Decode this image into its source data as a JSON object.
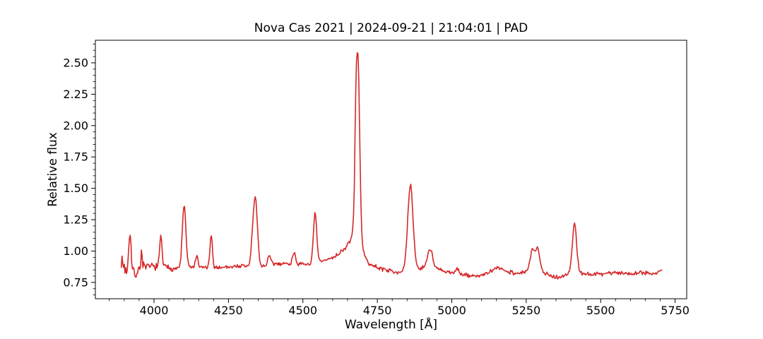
{
  "figure": {
    "background": "#ffffff"
  },
  "chart_data": {
    "type": "line",
    "title": "Nova Cas 2021 | 2024-09-21 | 21:04:01 | PAD",
    "xlabel": "Wavelength [Å]",
    "ylabel": "Relative flux",
    "xlim": [
      3803,
      5789
    ],
    "ylim": [
      0.62,
      2.68
    ],
    "x_ticks": [
      4000,
      4250,
      4500,
      4750,
      5000,
      5250,
      5500,
      5750
    ],
    "x_tick_labels": [
      "4000",
      "4250",
      "4500",
      "4750",
      "5000",
      "5250",
      "5500",
      "5750"
    ],
    "x_minor_step": 50,
    "y_ticks": [
      0.75,
      1.0,
      1.25,
      1.5,
      1.75,
      2.0,
      2.25,
      2.5
    ],
    "y_tick_labels": [
      "0.75",
      "1.00",
      "1.25",
      "1.50",
      "1.75",
      "2.00",
      "2.25",
      "2.50"
    ],
    "y_minor_step": 0.05,
    "grid": false,
    "legend": null,
    "line_color": "#d62728",
    "line_width": 1.6,
    "axis_color": "#000000",
    "series_name": "relative-flux-spectrum",
    "x_data_range": [
      3890,
      5705
    ],
    "y_data_range": [
      0.7,
      2.59
    ],
    "emission_features": [
      {
        "wavelength": 3920,
        "peak_flux": 1.24
      },
      {
        "wavelength": 4025,
        "peak_flux": 1.12
      },
      {
        "wavelength": 4101,
        "peak_flux": 1.38
      },
      {
        "wavelength": 4192,
        "peak_flux": 1.13
      },
      {
        "wavelength": 4340,
        "peak_flux": 1.44
      },
      {
        "wavelength": 4541,
        "peak_flux": 1.28
      },
      {
        "wavelength": 4686,
        "peak_flux": 2.58
      },
      {
        "wavelength": 4861,
        "peak_flux": 1.52
      },
      {
        "wavelength": 4927,
        "peak_flux": 1.02
      },
      {
        "wavelength": 5155,
        "peak_flux": 0.92
      },
      {
        "wavelength": 5283,
        "peak_flux": 1.04
      },
      {
        "wavelength": 5412,
        "peak_flux": 1.22
      }
    ],
    "spectrum": {
      "x_start": 3890,
      "x_end": 5705,
      "x_step": 2.5,
      "noise_seed": 7,
      "noise_bands": [
        {
          "below": 3970,
          "amp": 0.065
        },
        {
          "below": 4070,
          "amp": 0.032
        },
        {
          "below": 99999,
          "amp": 0.021
        }
      ],
      "continuum": [
        [
          3890,
          0.93
        ],
        [
          3905,
          0.85
        ],
        [
          3935,
          0.82
        ],
        [
          3960,
          0.86
        ],
        [
          3990,
          0.88
        ],
        [
          4040,
          0.87
        ],
        [
          4080,
          0.86
        ],
        [
          4130,
          0.87
        ],
        [
          4160,
          0.87
        ],
        [
          4220,
          0.87
        ],
        [
          4280,
          0.88
        ],
        [
          4330,
          0.88
        ],
        [
          4370,
          0.88
        ],
        [
          4410,
          0.9
        ],
        [
          4450,
          0.9
        ],
        [
          4490,
          0.89
        ],
        [
          4530,
          0.9
        ],
        [
          4570,
          0.92
        ],
        [
          4610,
          0.96
        ],
        [
          4645,
          1.03
        ],
        [
          4668,
          1.12
        ],
        [
          4695,
          1.02
        ],
        [
          4715,
          0.92
        ],
        [
          4735,
          0.88
        ],
        [
          4765,
          0.86
        ],
        [
          4800,
          0.84
        ],
        [
          4835,
          0.83
        ],
        [
          4875,
          0.85
        ],
        [
          4905,
          0.87
        ],
        [
          4945,
          0.86
        ],
        [
          4985,
          0.83
        ],
        [
          5030,
          0.81
        ],
        [
          5080,
          0.8
        ],
        [
          5120,
          0.82
        ],
        [
          5155,
          0.87
        ],
        [
          5185,
          0.84
        ],
        [
          5225,
          0.82
        ],
        [
          5255,
          0.84
        ],
        [
          5295,
          0.84
        ],
        [
          5325,
          0.81
        ],
        [
          5360,
          0.79
        ],
        [
          5395,
          0.82
        ],
        [
          5430,
          0.83
        ],
        [
          5465,
          0.81
        ],
        [
          5505,
          0.82
        ],
        [
          5545,
          0.83
        ],
        [
          5590,
          0.82
        ],
        [
          5635,
          0.83
        ],
        [
          5680,
          0.82
        ],
        [
          5706,
          0.85
        ]
      ],
      "peaks": [
        [
          3919,
          0.34,
          3.5
        ],
        [
          3958,
          0.14,
          3.0
        ],
        [
          4023,
          0.24,
          4.0
        ],
        [
          4101,
          0.5,
          6.0
        ],
        [
          4143,
          0.09,
          4.0
        ],
        [
          4192,
          0.25,
          4.0
        ],
        [
          4329,
          0.1,
          4.0
        ],
        [
          4340,
          0.55,
          7.0
        ],
        [
          4387,
          0.07,
          5.0
        ],
        [
          4471,
          0.1,
          5.0
        ],
        [
          4541,
          0.39,
          5.5
        ],
        [
          4677,
          0.28,
          3.0
        ],
        [
          4684,
          1.52,
          6.5
        ],
        [
          4861,
          0.68,
          9.0
        ],
        [
          4927,
          0.16,
          8.0
        ],
        [
          5018,
          0.05,
          6.0
        ],
        [
          5270,
          0.15,
          7.0
        ],
        [
          5288,
          0.18,
          8.0
        ],
        [
          5412,
          0.4,
          7.0
        ]
      ]
    }
  }
}
